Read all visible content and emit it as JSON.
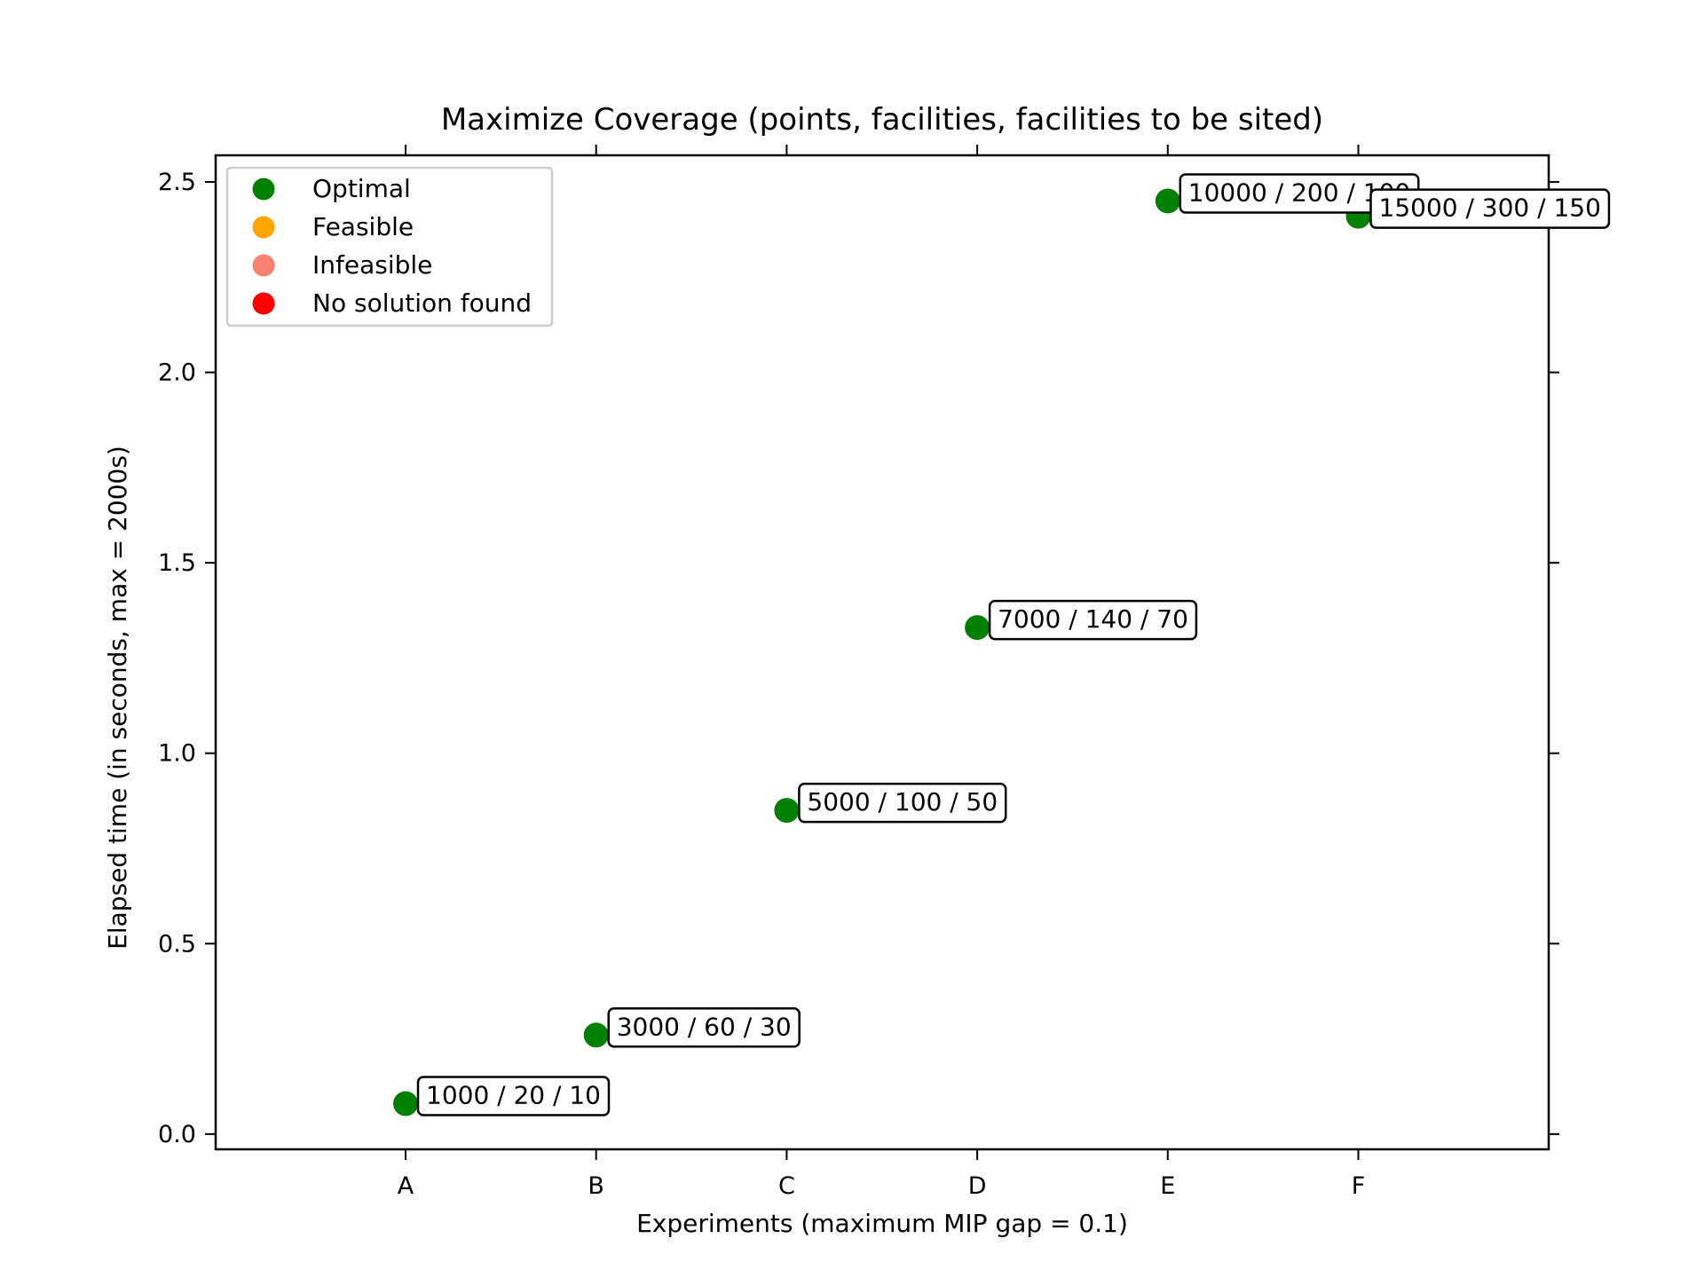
{
  "chart_data": {
    "type": "scatter",
    "title": "Maximize Coverage (points, facilities, facilities to be sited)",
    "xlabel": "Experiments (maximum MIP gap = 0.1)",
    "ylabel": "Elapsed time (in seconds, max = 2000s)",
    "categories": [
      "A",
      "B",
      "C",
      "D",
      "E",
      "F"
    ],
    "ylim": [
      -0.04,
      2.57
    ],
    "yticks": [
      "0.0",
      "0.5",
      "1.0",
      "1.5",
      "2.0",
      "2.5"
    ],
    "grid": false,
    "legend_position": "top-left",
    "series": [
      {
        "name": "Optimal",
        "color": "#008000",
        "points": [
          {
            "x": "A",
            "y": 0.08,
            "label": "1000 / 20 / 10"
          },
          {
            "x": "B",
            "y": 0.26,
            "label": "3000 / 60 / 30"
          },
          {
            "x": "C",
            "y": 0.85,
            "label": "5000 / 100 / 50"
          },
          {
            "x": "D",
            "y": 1.33,
            "label": "7000 / 140 / 70"
          },
          {
            "x": "E",
            "y": 2.45,
            "label": "10000 / 200 / 100"
          },
          {
            "x": "F",
            "y": 2.41,
            "label": "15000 / 300 / 150"
          }
        ]
      },
      {
        "name": "Feasible",
        "color": "#FFA500",
        "points": []
      },
      {
        "name": "Infeasible",
        "color": "#FA8072",
        "points": []
      },
      {
        "name": "No solution found",
        "color": "#FF0000",
        "points": []
      }
    ]
  }
}
